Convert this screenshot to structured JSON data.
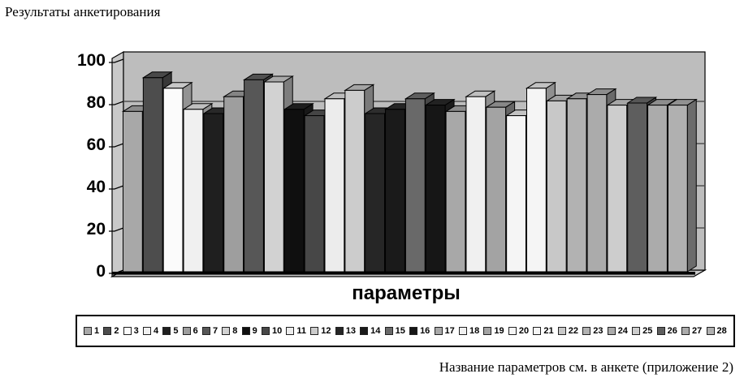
{
  "title": "Результаты анкетирования",
  "footnote": "Название параметров см. в анкете (приложение 2)",
  "palette": {
    "back_wall": "#bdbdbd",
    "side_wall": "#c9c9c9",
    "floor": "#c9c9c9",
    "gridline": "#1a1a1a",
    "axis_line": "#000000",
    "legend_border": "#000000"
  },
  "chart_data": {
    "type": "bar",
    "style": "3d-column-grayscale",
    "title": "Результаты анкетирования",
    "xlabel": "параметры",
    "ylabel": "",
    "ylim": [
      0,
      100
    ],
    "yticks": [
      0,
      20,
      40,
      60,
      80,
      100
    ],
    "grid": true,
    "legend_position": "bottom-box",
    "footnote": "Название параметров см. в анкете (приложение 2)",
    "categories": [
      "1",
      "2",
      "3",
      "4",
      "5",
      "6",
      "7",
      "8",
      "9",
      "10",
      "11",
      "12",
      "13",
      "14",
      "15",
      "16",
      "17",
      "18",
      "19",
      "20",
      "21",
      "22",
      "23",
      "24",
      "25",
      "26",
      "27",
      "28"
    ],
    "values": [
      76,
      92,
      87,
      77,
      75,
      83,
      91,
      90,
      77,
      74,
      82,
      86,
      75,
      77,
      82,
      79,
      76,
      83,
      78,
      74,
      87,
      81,
      82,
      84,
      79,
      80,
      79,
      79
    ],
    "bar_colors": [
      "#a8a8a8",
      "#4d4d4d",
      "#fbfbfb",
      "#f0f0f0",
      "#1f1f1f",
      "#9e9e9e",
      "#575757",
      "#d2d2d2",
      "#0f0f0f",
      "#474747",
      "#ececec",
      "#cccccc",
      "#262626",
      "#1a1a1a",
      "#696969",
      "#161616",
      "#a8a8a8",
      "#f0f0f0",
      "#a3a3a3",
      "#f5f5f5",
      "#f5f5f5",
      "#c8c8c8",
      "#b2b2b2",
      "#ababab",
      "#cdcdcd",
      "#5e5e5e",
      "#ababab",
      "#b0b0b0"
    ]
  }
}
